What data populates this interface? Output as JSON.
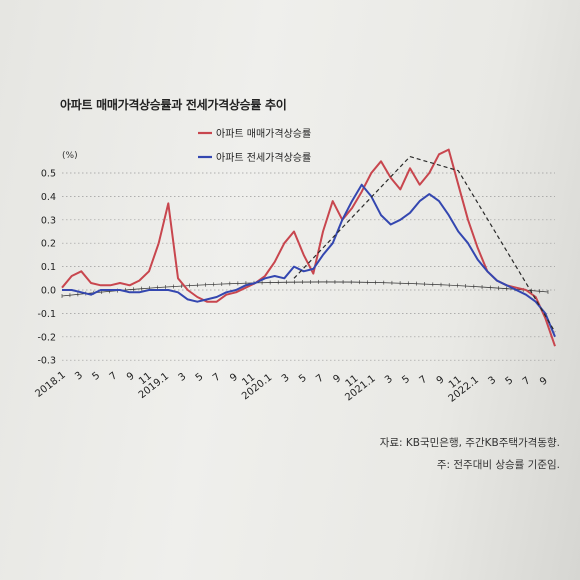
{
  "title": "아파트 매매가격상승률과 전세가격상승률 추이",
  "source_note": "자료: KB국민은행, 주간KB주택가격동향.",
  "footnote": "주: 전주대비 상승률 기준임.",
  "colors": {
    "sale": "#c8464e",
    "jeonse": "#3447b0",
    "trend": "#2a2a2a",
    "grid": "#9a9a9a"
  },
  "chart_data": {
    "type": "line",
    "title": "아파트 매매가격상승률과 전세가격상승률 추이",
    "ylabel": "(%)",
    "ylim": [
      -0.3,
      0.6
    ],
    "yticks": [
      "0.5",
      "0.4",
      "0.3",
      "0.2",
      "0.1",
      "0.0",
      "-0.1",
      "-0.2",
      "-0.3"
    ],
    "x_tick_labels": [
      "2018.1",
      "3",
      "5",
      "7",
      "9",
      "11",
      "2019.1",
      "3",
      "5",
      "7",
      "9",
      "11",
      "2020.1",
      "3",
      "5",
      "7",
      "9",
      "11",
      "2021.1",
      "3",
      "5",
      "7",
      "9",
      "11",
      "2022.1",
      "3",
      "5",
      "7",
      "9"
    ],
    "legend_position": "top-center",
    "grid": "horizontal dotted",
    "series": [
      {
        "name": "아파트 매매가격상승률",
        "color": "#c8464e",
        "points": [
          [
            0,
            0.01
          ],
          [
            1,
            0.06
          ],
          [
            2,
            0.08
          ],
          [
            3,
            0.03
          ],
          [
            4,
            0.02
          ],
          [
            5,
            0.02
          ],
          [
            6,
            0.03
          ],
          [
            7,
            0.02
          ],
          [
            8,
            0.04
          ],
          [
            9,
            0.08
          ],
          [
            10,
            0.2
          ],
          [
            11,
            0.37
          ],
          [
            12,
            0.05
          ],
          [
            13,
            0.0
          ],
          [
            14,
            -0.03
          ],
          [
            15,
            -0.05
          ],
          [
            16,
            -0.05
          ],
          [
            17,
            -0.02
          ],
          [
            18,
            -0.01
          ],
          [
            19,
            0.01
          ],
          [
            20,
            0.03
          ],
          [
            21,
            0.06
          ],
          [
            22,
            0.12
          ],
          [
            23,
            0.2
          ],
          [
            24,
            0.25
          ],
          [
            25,
            0.15
          ],
          [
            26,
            0.07
          ],
          [
            27,
            0.25
          ],
          [
            28,
            0.38
          ],
          [
            29,
            0.3
          ],
          [
            30,
            0.35
          ],
          [
            31,
            0.42
          ],
          [
            32,
            0.5
          ],
          [
            33,
            0.55
          ],
          [
            34,
            0.48
          ],
          [
            35,
            0.43
          ],
          [
            36,
            0.52
          ],
          [
            37,
            0.45
          ],
          [
            38,
            0.5
          ],
          [
            39,
            0.58
          ],
          [
            40,
            0.6
          ],
          [
            41,
            0.45
          ],
          [
            42,
            0.3
          ],
          [
            43,
            0.18
          ],
          [
            44,
            0.08
          ],
          [
            45,
            0.04
          ],
          [
            46,
            0.02
          ],
          [
            47,
            0.01
          ],
          [
            48,
            0.0
          ],
          [
            49,
            -0.03
          ],
          [
            50,
            -0.12
          ],
          [
            51,
            -0.24
          ]
        ]
      },
      {
        "name": "아파트 전세가격상승률",
        "color": "#3447b0",
        "points": [
          [
            0,
            0.0
          ],
          [
            1,
            0.0
          ],
          [
            2,
            -0.01
          ],
          [
            3,
            -0.02
          ],
          [
            4,
            0.0
          ],
          [
            5,
            0.0
          ],
          [
            6,
            0.0
          ],
          [
            7,
            -0.01
          ],
          [
            8,
            -0.01
          ],
          [
            9,
            0.0
          ],
          [
            10,
            0.0
          ],
          [
            11,
            0.0
          ],
          [
            12,
            -0.01
          ],
          [
            13,
            -0.04
          ],
          [
            14,
            -0.05
          ],
          [
            15,
            -0.04
          ],
          [
            16,
            -0.03
          ],
          [
            17,
            -0.01
          ],
          [
            18,
            0.0
          ],
          [
            19,
            0.02
          ],
          [
            20,
            0.03
          ],
          [
            21,
            0.05
          ],
          [
            22,
            0.06
          ],
          [
            23,
            0.05
          ],
          [
            24,
            0.1
          ],
          [
            25,
            0.08
          ],
          [
            26,
            0.09
          ],
          [
            27,
            0.15
          ],
          [
            28,
            0.2
          ],
          [
            29,
            0.3
          ],
          [
            30,
            0.38
          ],
          [
            31,
            0.45
          ],
          [
            32,
            0.4
          ],
          [
            33,
            0.32
          ],
          [
            34,
            0.28
          ],
          [
            35,
            0.3
          ],
          [
            36,
            0.33
          ],
          [
            37,
            0.38
          ],
          [
            38,
            0.41
          ],
          [
            39,
            0.38
          ],
          [
            40,
            0.32
          ],
          [
            41,
            0.25
          ],
          [
            42,
            0.2
          ],
          [
            43,
            0.13
          ],
          [
            44,
            0.08
          ],
          [
            45,
            0.04
          ],
          [
            46,
            0.02
          ],
          [
            47,
            0.0
          ],
          [
            48,
            -0.02
          ],
          [
            49,
            -0.05
          ],
          [
            50,
            -0.1
          ],
          [
            51,
            -0.2
          ]
        ]
      }
    ],
    "trend_lines": [
      {
        "points": [
          [
            24,
            0.05
          ],
          [
            36,
            0.57
          ]
        ]
      },
      {
        "points": [
          [
            36,
            0.57
          ],
          [
            41,
            0.51
          ],
          [
            48,
            0.03
          ],
          [
            51,
            -0.18
          ]
        ]
      }
    ],
    "baseline_arc": true
  }
}
